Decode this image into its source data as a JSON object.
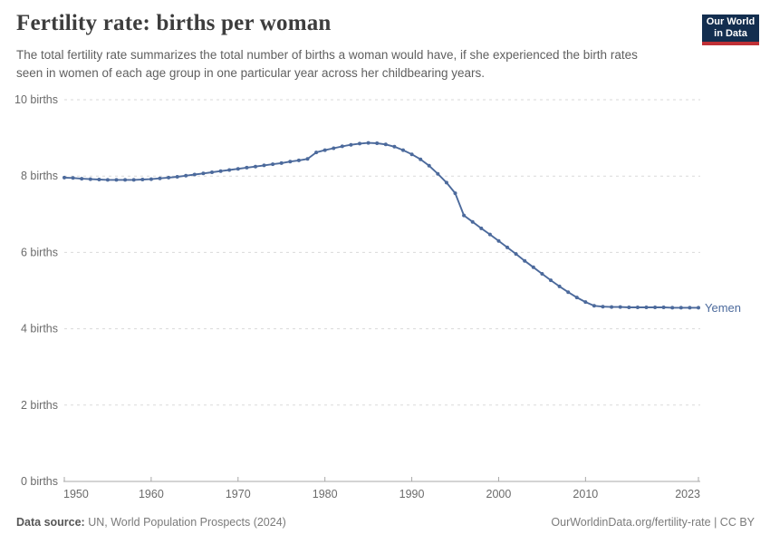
{
  "header": {
    "title": "Fertility rate: births per woman",
    "subtitle": "The total fertility rate summarizes the total number of births a woman would have, if she experienced the birth rates seen in women of each age group in one particular year across her childbearing years.",
    "logo": {
      "line1": "Our World",
      "line2": "in Data"
    }
  },
  "chart_data": {
    "type": "line",
    "title": "Fertility rate: births per woman",
    "xlabel": "",
    "ylabel": "births",
    "xlim": [
      1950,
      2023
    ],
    "ylim": [
      0,
      10
    ],
    "grid": "horizontal-dashed",
    "legend_position": "end-of-line-label",
    "xtick_values": [
      1950,
      1960,
      1970,
      1980,
      1990,
      2000,
      2010,
      2023
    ],
    "xtick_labels": [
      "1950",
      "1960",
      "1970",
      "1980",
      "1990",
      "2000",
      "2010",
      "2023"
    ],
    "ytick_values": [
      0,
      2,
      4,
      6,
      8,
      10
    ],
    "ytick_labels": [
      "0 births",
      "2 births",
      "4 births",
      "6 births",
      "8 births",
      "10 births"
    ],
    "x": [
      1950,
      1951,
      1952,
      1953,
      1954,
      1955,
      1956,
      1957,
      1958,
      1959,
      1960,
      1961,
      1962,
      1963,
      1964,
      1965,
      1966,
      1967,
      1968,
      1969,
      1970,
      1971,
      1972,
      1973,
      1974,
      1975,
      1976,
      1977,
      1978,
      1979,
      1980,
      1981,
      1982,
      1983,
      1984,
      1985,
      1986,
      1987,
      1988,
      1989,
      1990,
      1991,
      1992,
      1993,
      1994,
      1995,
      1996,
      1997,
      1998,
      1999,
      2000,
      2001,
      2002,
      2003,
      2004,
      2005,
      2006,
      2007,
      2008,
      2009,
      2010,
      2011,
      2012,
      2013,
      2014,
      2015,
      2016,
      2017,
      2018,
      2019,
      2020,
      2021,
      2022,
      2023
    ],
    "series": [
      {
        "name": "Yemen",
        "color": "#4c6a9c",
        "values": [
          7.96,
          7.95,
          7.93,
          7.92,
          7.91,
          7.9,
          7.9,
          7.9,
          7.9,
          7.91,
          7.92,
          7.94,
          7.96,
          7.98,
          8.01,
          8.04,
          8.07,
          8.1,
          8.13,
          8.16,
          8.19,
          8.22,
          8.25,
          8.28,
          8.31,
          8.34,
          8.38,
          8.41,
          8.45,
          8.62,
          8.68,
          8.73,
          8.78,
          8.82,
          8.85,
          8.87,
          8.86,
          8.83,
          8.77,
          8.68,
          8.57,
          8.44,
          8.27,
          8.06,
          7.83,
          7.55,
          6.97,
          6.8,
          6.63,
          6.47,
          6.3,
          6.13,
          5.96,
          5.78,
          5.61,
          5.44,
          5.27,
          5.11,
          4.96,
          4.82,
          4.7,
          4.6,
          4.58,
          4.57,
          4.57,
          4.56,
          4.56,
          4.56,
          4.56,
          4.56,
          4.55,
          4.55,
          4.55,
          4.55
        ]
      }
    ],
    "entity_label": "Yemen"
  },
  "footer": {
    "source_label": "Data source:",
    "source_value": " UN, World Population Prospects (2024)",
    "credit": "OurWorldinData.org/fertility-rate | CC BY"
  },
  "colors": {
    "accent_line": "#4c6a9c",
    "gridline": "#dadada",
    "axis_line": "#a8a8a8",
    "tick_text": "#6b6b6b",
    "logo_bg": "#132e4f",
    "logo_stripe": "#bf3036",
    "title_text": "#3d3d3d",
    "subtitle_text": "#5f5f5f"
  }
}
